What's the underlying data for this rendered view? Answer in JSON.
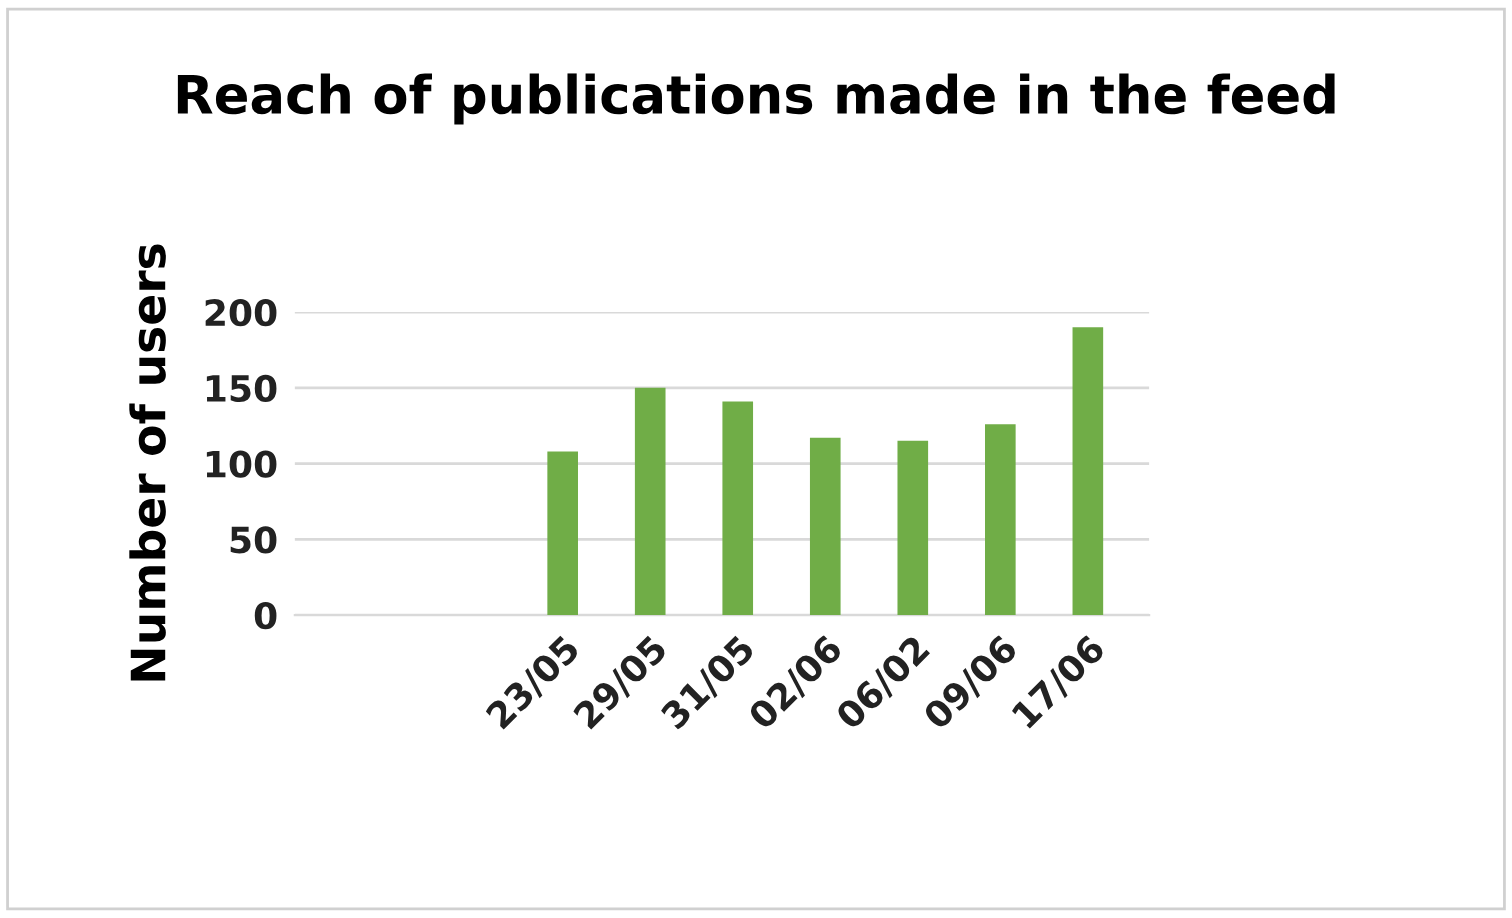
{
  "chart_data": {
    "type": "bar",
    "title": "Reach of publications made in the feed",
    "ylabel": "Number of users",
    "categories": [
      "23/05",
      "29/05",
      "31/05",
      "02/06",
      "06/02",
      "09/06",
      "17/06"
    ],
    "values": [
      108,
      150,
      141,
      117,
      115,
      126,
      190
    ],
    "color": "#70ad47",
    "ylim": [
      0,
      200
    ],
    "yticks": [
      0,
      50,
      100,
      150,
      200
    ],
    "grid": "y",
    "legend": false
  }
}
